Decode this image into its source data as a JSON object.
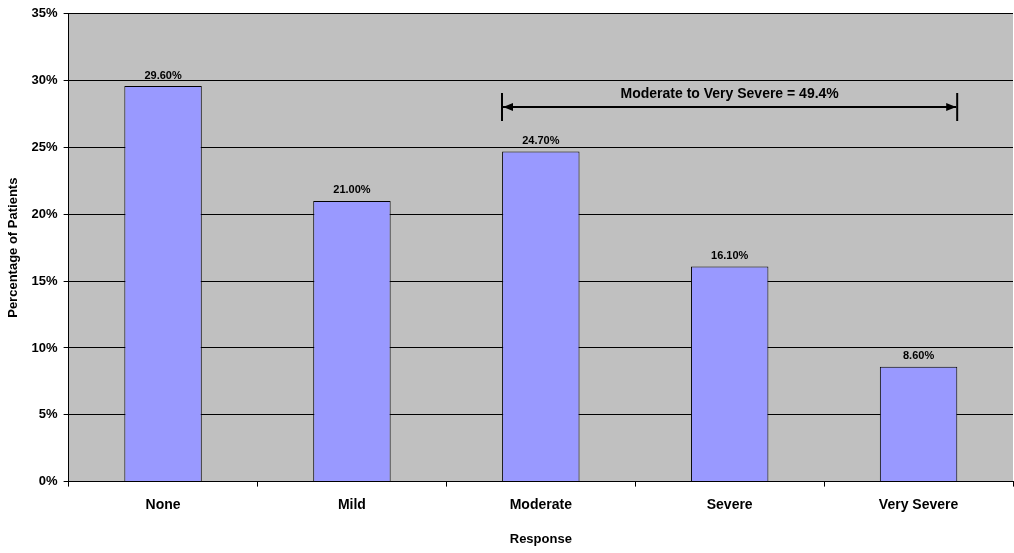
{
  "chart_data": {
    "type": "bar",
    "xlabel": "Response",
    "ylabel": "Percentage of Patients",
    "categories": [
      "None",
      "Mild",
      "Moderate",
      "Severe",
      "Very Severe"
    ],
    "values": [
      29.6,
      21.0,
      24.7,
      16.1,
      8.6
    ],
    "value_labels": [
      "29.60%",
      "21.00%",
      "24.70%",
      "16.10%",
      "8.60%"
    ],
    "color": "#9999ff",
    "ylim": [
      0,
      35
    ],
    "yticks": [
      {
        "value": 0,
        "label": "0%"
      },
      {
        "value": 5,
        "label": "5%"
      },
      {
        "value": 10,
        "label": "10%"
      },
      {
        "value": 15,
        "label": "15%"
      },
      {
        "value": 20,
        "label": "20%"
      },
      {
        "value": 25,
        "label": "25%"
      },
      {
        "value": 30,
        "label": "30%"
      },
      {
        "value": 35,
        "label": "35%"
      }
    ],
    "grid": "y",
    "legend": false,
    "annotations": [
      "Moderate to Very Severe = 49.4%"
    ]
  }
}
